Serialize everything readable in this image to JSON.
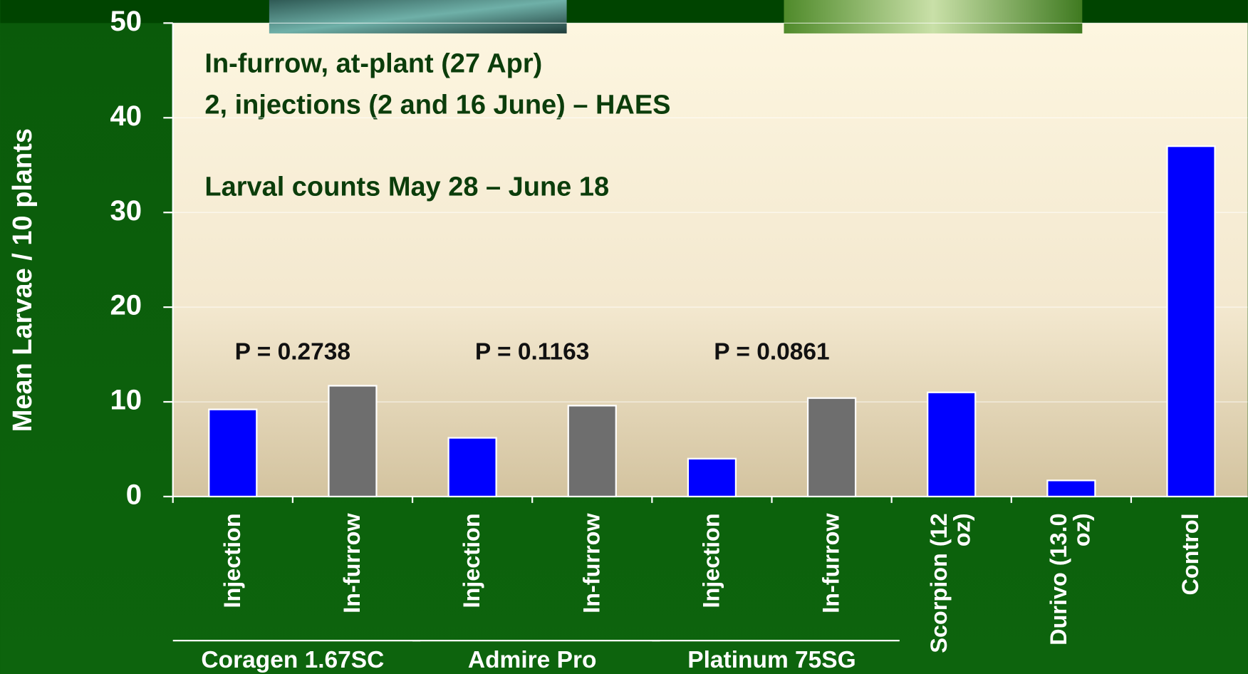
{
  "chart_data": {
    "type": "bar",
    "title_lines": [
      "In-furrow, at-plant (27 Apr)",
      "2, injections (2 and 16 June) – HAES",
      "Larval counts May 28 – June 18"
    ],
    "ylabel": "Mean Larvae / 10 plants",
    "categories": [
      "Injection",
      "In-furrow",
      "Injection",
      "In-furrow",
      "Injection",
      "In-furrow",
      "Scorpion (12 oz)",
      "Durivo (13.0 oz)",
      "Control"
    ],
    "values": [
      9.2,
      11.7,
      6.2,
      9.6,
      4.0,
      10.4,
      11.0,
      1.7,
      37.0
    ],
    "colors": [
      "#0000ff",
      "#6e6e6e",
      "#0000ff",
      "#6e6e6e",
      "#0000ff",
      "#6e6e6e",
      "#0000ff",
      "#0000ff",
      "#0000ff"
    ],
    "groups": [
      "Coragen 1.67SC",
      "Admire Pro",
      "Platinum 75SG"
    ],
    "annotations": [
      "P = 0.2738",
      "P = 0.1163",
      "P = 0.0861"
    ],
    "ylim": [
      0,
      50
    ],
    "yticks": [
      0,
      10,
      20,
      30,
      40,
      50
    ],
    "grid": true
  }
}
